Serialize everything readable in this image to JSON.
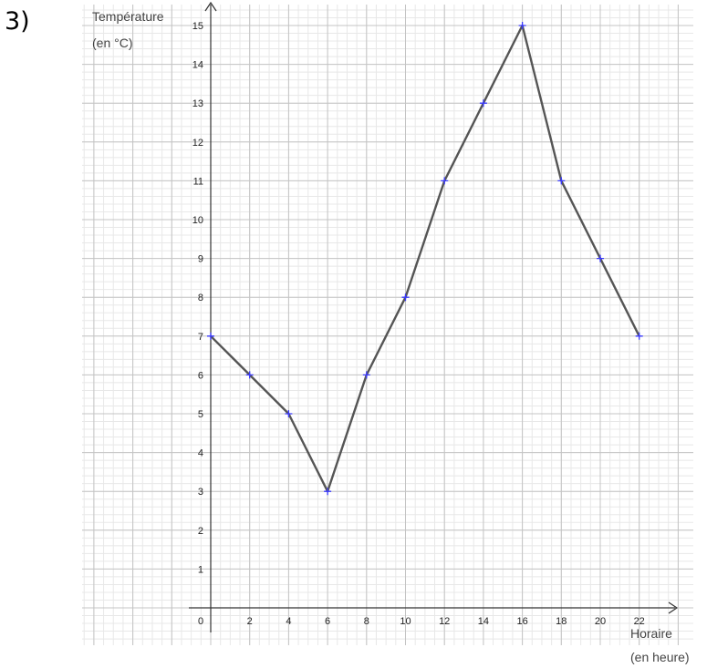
{
  "problem_number": "3)",
  "chart_data": {
    "type": "line",
    "ylabel_line1": "Température",
    "ylabel_line2": "(en °C)",
    "xlabel_line1": "Horaire",
    "xlabel_line2": "(en heure)",
    "x_ticks": [
      "0",
      "2",
      "4",
      "6",
      "8",
      "10",
      "12",
      "14",
      "16",
      "18",
      "20",
      "22"
    ],
    "y_ticks": [
      "1",
      "2",
      "3",
      "4",
      "5",
      "6",
      "7",
      "8",
      "9",
      "10",
      "11",
      "12",
      "13",
      "14",
      "15"
    ],
    "xlim": [
      -6.5,
      24.2
    ],
    "ylim": [
      -1,
      15.6
    ],
    "grid": true,
    "series": [
      {
        "x": [
          0,
          2,
          4,
          6,
          8,
          10,
          12,
          14,
          16,
          18,
          20,
          22
        ],
        "y": [
          7,
          6,
          5,
          3,
          6,
          8,
          11,
          13,
          15,
          11,
          9,
          7
        ]
      }
    ],
    "colors": {
      "line": "#555555",
      "marker": "#3b3bff",
      "major_grid": "#c4c4c4",
      "minor_grid": "#e8e8e8",
      "axis": "#333333"
    }
  }
}
